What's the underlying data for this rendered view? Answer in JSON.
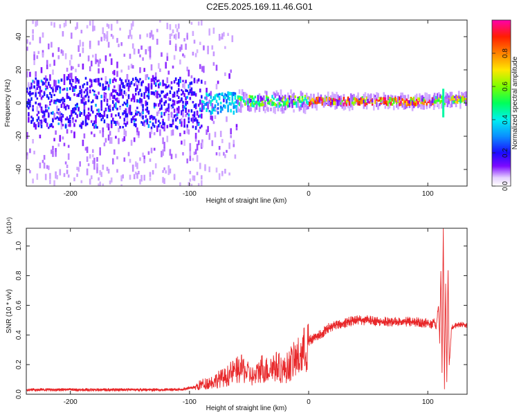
{
  "title": "C2E5.2025.169.11.46.G01",
  "chart_data": [
    {
      "type": "heatmap",
      "xlabel": "Height of straight line (km)",
      "ylabel": "Frequency (Hz)",
      "xlim": [
        -237,
        133
      ],
      "ylim": [
        -50,
        50
      ],
      "xticks": [
        -200,
        -100,
        0,
        100
      ],
      "xtick_labels": [
        "-200",
        "-100",
        "0",
        "100"
      ],
      "yticks": [
        -40,
        -20,
        0,
        20,
        40
      ],
      "ytick_labels": [
        "-40",
        "-20",
        "0",
        "20",
        "40"
      ],
      "colorbar": {
        "label": "Normalized spectral amplitude",
        "range": [
          0,
          1
        ],
        "ticks": [
          0,
          0.2,
          0.4,
          0.6,
          0.8
        ],
        "tick_labels": [
          "0.0",
          "0.2",
          "0.4",
          "0.6",
          "0.8"
        ]
      },
      "bands": [
        {
          "x_start": -237,
          "x_end": -90,
          "center_hz": 0,
          "half_width_hz": 15,
          "scatter_half_width_hz": 50,
          "amplitude": 0.2
        },
        {
          "x_start": -90,
          "x_end": -60,
          "center_hz": 0,
          "half_width_hz": 6,
          "scatter_half_width_hz": 45,
          "amplitude": 0.4
        },
        {
          "x_start": -60,
          "x_end": 0,
          "center_hz": 1,
          "half_width_hz": 3,
          "scatter_half_width_hz": 6,
          "amplitude": 0.6
        },
        {
          "x_start": 0,
          "x_end": 105,
          "center_hz": 1,
          "half_width_hz": 2,
          "scatter_half_width_hz": 4,
          "amplitude": 0.9
        },
        {
          "x_start": 105,
          "x_end": 133,
          "center_hz": 2,
          "half_width_hz": 2,
          "scatter_half_width_hz": 4,
          "amplitude": 0.7
        }
      ],
      "anomaly": {
        "x": 113,
        "min_hz": -8,
        "max_hz": 8
      }
    },
    {
      "type": "line",
      "xlabel": "Height of straight line (km)",
      "ylabel": "SNR (10 * v/v)",
      "y_multiplier": "(x10⁴)",
      "xlim": [
        -237,
        133
      ],
      "ylim": [
        0,
        1.12
      ],
      "xticks": [
        -200,
        -100,
        0,
        100
      ],
      "xtick_labels": [
        "-200",
        "-100",
        "0",
        "100"
      ],
      "yticks": [
        0,
        0.2,
        0.4,
        0.6,
        0.8,
        1.0
      ],
      "ytick_labels": [
        "0.0",
        "0.2",
        "0.4",
        "0.6",
        "0.8",
        "1.0"
      ],
      "color": "#e8282a",
      "series": [
        {
          "x": [
            -237,
            -220,
            -200,
            -180,
            -160,
            -140,
            -120,
            -105,
            -95,
            -90,
            -85,
            -80,
            -75,
            -70,
            -65,
            -60,
            -55,
            -50,
            -45,
            -40,
            -35,
            -30,
            -25,
            -20,
            -15,
            -10,
            -5,
            0,
            5,
            10,
            15,
            20,
            25,
            30,
            35,
            40,
            45,
            50,
            55,
            60,
            65,
            70,
            75,
            80,
            85,
            90,
            95,
            100,
            103,
            105,
            107,
            109,
            110,
            111,
            112,
            113,
            114,
            115,
            116,
            117,
            118,
            120,
            125,
            130,
            133
          ],
          "y": [
            0.03,
            0.03,
            0.03,
            0.03,
            0.03,
            0.03,
            0.03,
            0.035,
            0.05,
            0.07,
            0.08,
            0.09,
            0.11,
            0.12,
            0.15,
            0.17,
            0.18,
            0.14,
            0.12,
            0.19,
            0.17,
            0.2,
            0.19,
            0.17,
            0.22,
            0.25,
            0.29,
            0.36,
            0.38,
            0.4,
            0.44,
            0.46,
            0.47,
            0.48,
            0.49,
            0.5,
            0.5,
            0.5,
            0.49,
            0.49,
            0.49,
            0.49,
            0.49,
            0.49,
            0.49,
            0.49,
            0.48,
            0.48,
            0.47,
            0.5,
            0.45,
            0.6,
            0.35,
            0.85,
            0.15,
            1.12,
            0.05,
            0.75,
            0.1,
            0.85,
            0.2,
            0.45,
            0.47,
            0.47,
            0.46
          ]
        }
      ]
    }
  ]
}
